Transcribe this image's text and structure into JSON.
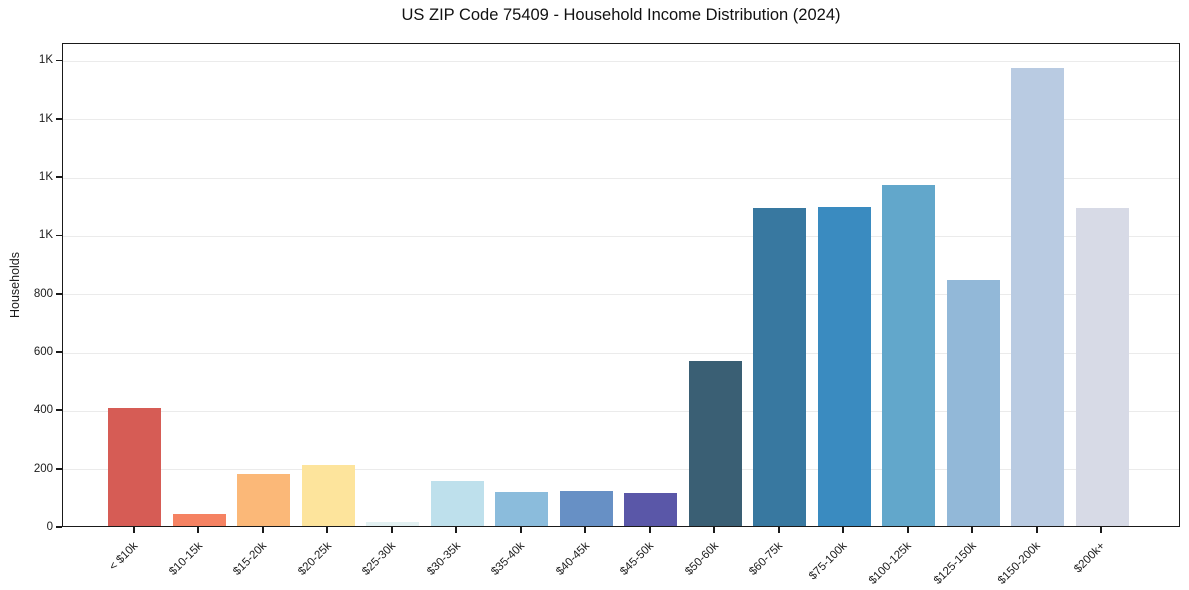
{
  "chart_data": {
    "type": "bar",
    "title": "US ZIP Code 75409 - Household Income Distribution (2024)",
    "xlabel": "",
    "ylabel": "Households",
    "categories": [
      "< $10k",
      "$10-15k",
      "$15-20k",
      "$20-25k",
      "$25-30k",
      "$30-35k",
      "$35-40k",
      "$40-45k",
      "$45-50k",
      "$50-60k",
      "$60-75k",
      "$75-100k",
      "$100-125k",
      "$125-150k",
      "$150-200k",
      "$200k+"
    ],
    "values": [
      405,
      40,
      180,
      210,
      15,
      155,
      115,
      120,
      112,
      565,
      1090,
      1095,
      1170,
      845,
      1570,
      1090
    ],
    "bar_colors": [
      "#d65c55",
      "#f58262",
      "#fbb878",
      "#fde49c",
      "#e3f1f2",
      "#bee0ec",
      "#8bbcdc",
      "#6790c5",
      "#5a57a8",
      "#3a5f74",
      "#3878a0",
      "#3a8bc0",
      "#62a7cb",
      "#92b8d8",
      "#b9cbe2",
      "#d7dae6"
    ],
    "ylim": [
      0,
      1660
    ],
    "yticks": [
      {
        "value": 0,
        "label": "0"
      },
      {
        "value": 200,
        "label": "200"
      },
      {
        "value": 400,
        "label": "400"
      },
      {
        "value": 600,
        "label": "600"
      },
      {
        "value": 800,
        "label": "800"
      },
      {
        "value": 1000,
        "label": "1K"
      },
      {
        "value": 1200,
        "label": "1K"
      },
      {
        "value": 1400,
        "label": "1K"
      },
      {
        "value": 1600,
        "label": "1K"
      }
    ],
    "grid": "horizontal",
    "legend": "none"
  },
  "colors": {
    "background": "#ffffff",
    "spine": "#1a1a1a",
    "gridline": "#ebebeb",
    "text": "#1c1c1c"
  }
}
